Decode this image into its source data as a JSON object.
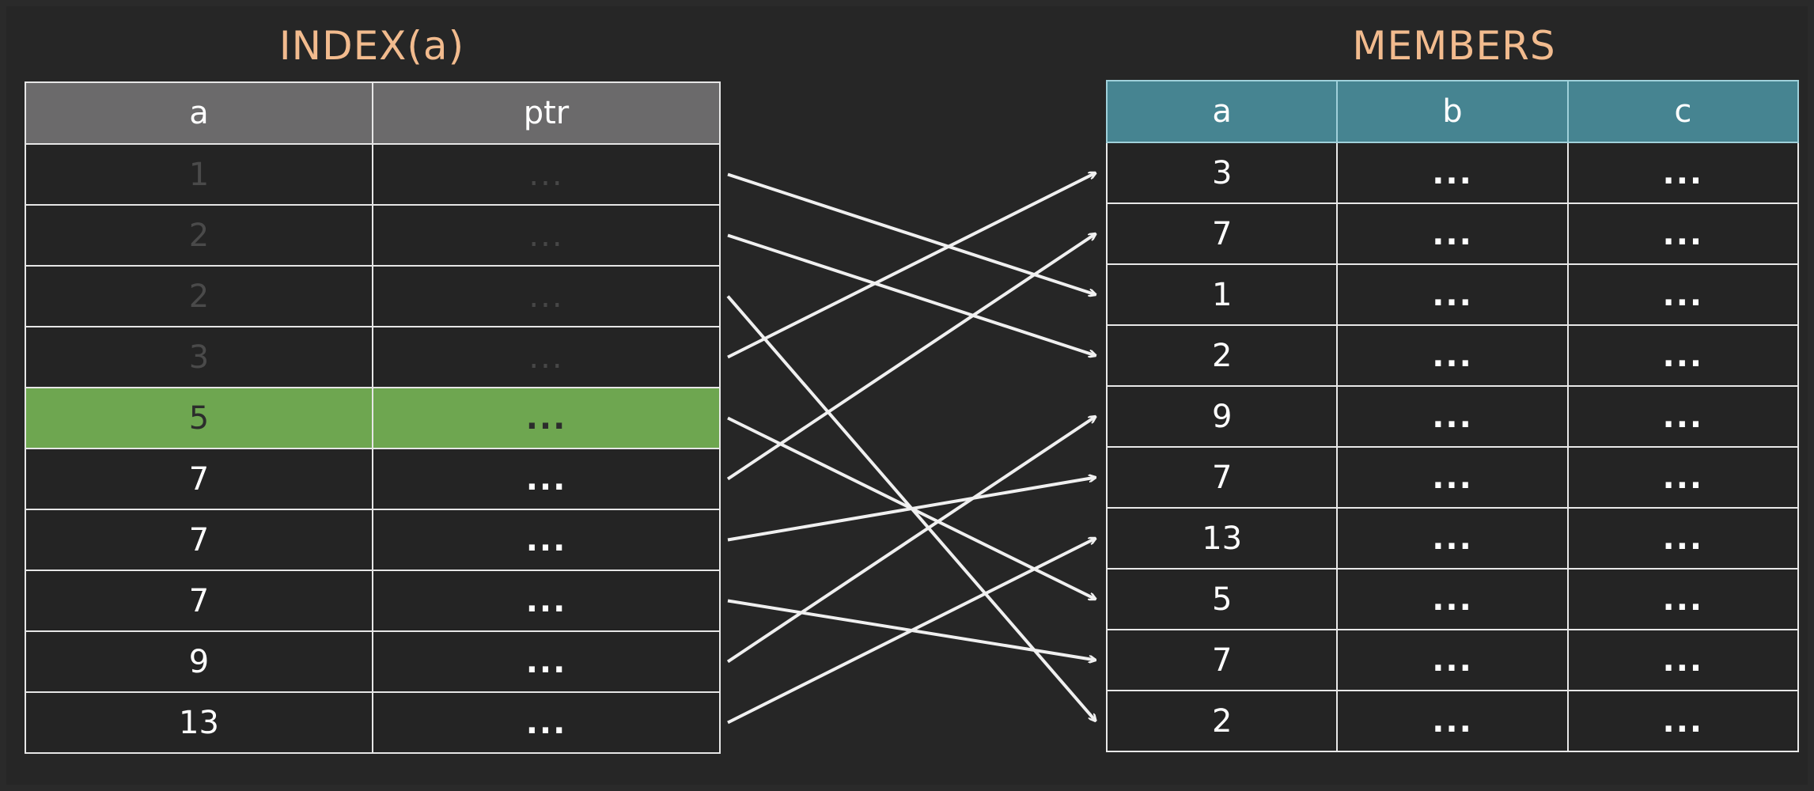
{
  "index": {
    "title": "INDEX(a)",
    "columns": [
      "a",
      "ptr"
    ],
    "rows": [
      {
        "a": "1",
        "ptr": "...",
        "faded": true
      },
      {
        "a": "2",
        "ptr": "...",
        "faded": true
      },
      {
        "a": "2",
        "ptr": "...",
        "faded": true
      },
      {
        "a": "3",
        "ptr": "...",
        "faded": true
      },
      {
        "a": "5",
        "ptr": "...",
        "highlight": true
      },
      {
        "a": "7",
        "ptr": "..."
      },
      {
        "a": "7",
        "ptr": "..."
      },
      {
        "a": "7",
        "ptr": "..."
      },
      {
        "a": "9",
        "ptr": "..."
      },
      {
        "a": "13",
        "ptr": "..."
      }
    ]
  },
  "members": {
    "title": "MEMBERS",
    "columns": [
      "a",
      "b",
      "c"
    ],
    "rows": [
      {
        "a": "3",
        "b": "...",
        "c": "..."
      },
      {
        "a": "7",
        "b": "...",
        "c": "..."
      },
      {
        "a": "1",
        "b": "...",
        "c": "..."
      },
      {
        "a": "2",
        "b": "...",
        "c": "..."
      },
      {
        "a": "9",
        "b": "...",
        "c": "..."
      },
      {
        "a": "7",
        "b": "...",
        "c": "..."
      },
      {
        "a": "13",
        "b": "...",
        "c": "..."
      },
      {
        "a": "5",
        "b": "...",
        "c": "..."
      },
      {
        "a": "7",
        "b": "...",
        "c": "..."
      },
      {
        "a": "2",
        "b": "...",
        "c": "..."
      }
    ]
  },
  "pointers": [
    {
      "from": 0,
      "to": 2
    },
    {
      "from": 1,
      "to": 3
    },
    {
      "from": 2,
      "to": 9
    },
    {
      "from": 3,
      "to": 0
    },
    {
      "from": 4,
      "to": 7
    },
    {
      "from": 5,
      "to": 1
    },
    {
      "from": 6,
      "to": 5
    },
    {
      "from": 7,
      "to": 8
    },
    {
      "from": 8,
      "to": 4
    },
    {
      "from": 9,
      "to": 6
    }
  ],
  "colors": {
    "title": "#f2bb8e",
    "index_header": "#6b6a6b",
    "members_header": "#468491",
    "highlight": "#6ea650",
    "arrow": "#f0f0f0"
  }
}
